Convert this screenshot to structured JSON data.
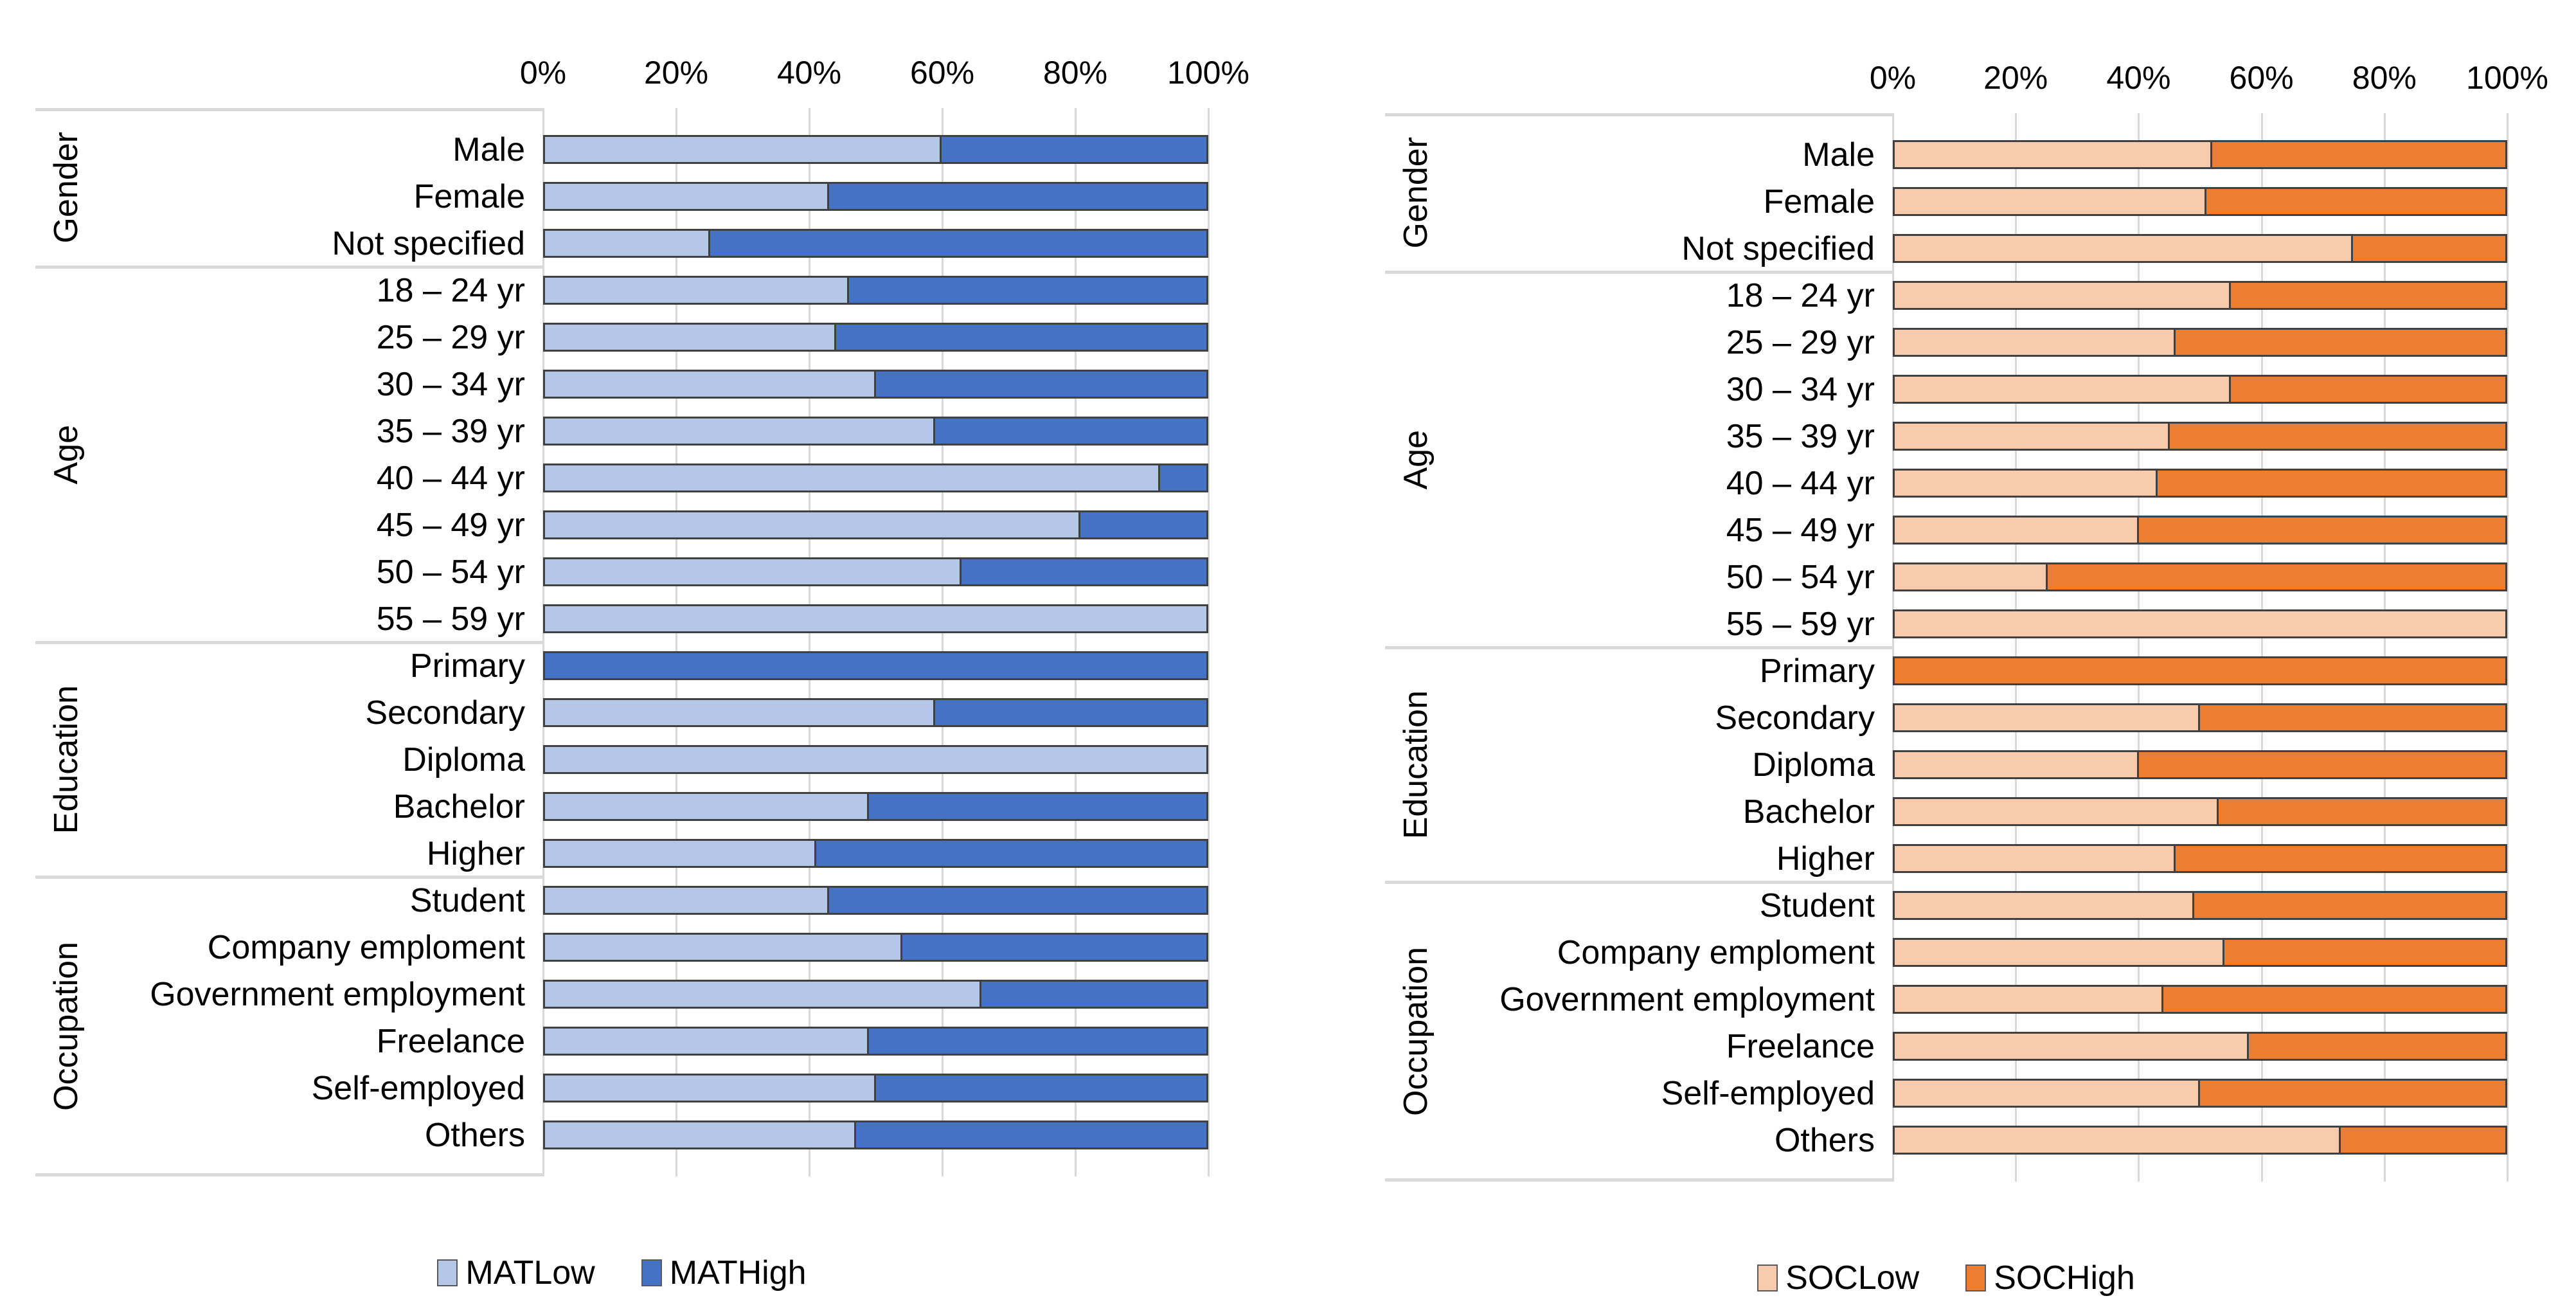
{
  "chart_data": [
    {
      "type": "bar",
      "stacked": true,
      "orientation": "horizontal",
      "units": "percent",
      "xlim": [
        0,
        100
      ],
      "grid": true,
      "legend_position": "bottom",
      "axis_ticks": [
        "0%",
        "20%",
        "40%",
        "60%",
        "80%",
        "100%"
      ],
      "series": [
        {
          "name": "MATLow",
          "color": "#b4c7e7"
        },
        {
          "name": "MATHigh",
          "color": "#4472c4"
        }
      ],
      "groups": [
        {
          "label": "Gender",
          "rows": [
            {
              "label": "Male",
              "low": 60,
              "high": 40
            },
            {
              "label": "Female",
              "low": 43,
              "high": 57
            },
            {
              "label": "Not specified",
              "low": 25,
              "high": 75
            }
          ]
        },
        {
          "label": "Age",
          "rows": [
            {
              "label": "18 – 24 yr",
              "low": 46,
              "high": 54
            },
            {
              "label": "25 – 29 yr",
              "low": 44,
              "high": 56
            },
            {
              "label": "30 – 34 yr",
              "low": 50,
              "high": 50
            },
            {
              "label": "35 – 39 yr",
              "low": 59,
              "high": 41
            },
            {
              "label": "40 – 44 yr",
              "low": 93,
              "high": 7
            },
            {
              "label": "45 – 49 yr",
              "low": 81,
              "high": 19
            },
            {
              "label": "50 – 54 yr",
              "low": 63,
              "high": 37
            },
            {
              "label": "55 – 59 yr",
              "low": 100,
              "high": 0
            }
          ]
        },
        {
          "label": "Education",
          "rows": [
            {
              "label": "Primary",
              "low": 0,
              "high": 100
            },
            {
              "label": "Secondary",
              "low": 59,
              "high": 41
            },
            {
              "label": "Diploma",
              "low": 100,
              "high": 0
            },
            {
              "label": "Bachelor",
              "low": 49,
              "high": 51
            },
            {
              "label": "Higher",
              "low": 41,
              "high": 59
            }
          ]
        },
        {
          "label": "Occupation",
          "rows": [
            {
              "label": "Student",
              "low": 43,
              "high": 57
            },
            {
              "label": "Company emploment",
              "low": 54,
              "high": 46
            },
            {
              "label": "Government employment",
              "low": 66,
              "high": 34
            },
            {
              "label": "Freelance",
              "low": 49,
              "high": 51
            },
            {
              "label": "Self-employed",
              "low": 50,
              "high": 50
            },
            {
              "label": "Others",
              "low": 47,
              "high": 53
            }
          ]
        }
      ]
    },
    {
      "type": "bar",
      "stacked": true,
      "orientation": "horizontal",
      "units": "percent",
      "xlim": [
        0,
        100
      ],
      "grid": true,
      "legend_position": "bottom",
      "axis_ticks": [
        "0%",
        "20%",
        "40%",
        "60%",
        "80%",
        "100%"
      ],
      "series": [
        {
          "name": "SOCLow",
          "color": "#f8cbad"
        },
        {
          "name": "SOCHigh",
          "color": "#ed7d31"
        }
      ],
      "groups": [
        {
          "label": "Gender",
          "rows": [
            {
              "label": "Male",
              "low": 52,
              "high": 48
            },
            {
              "label": "Female",
              "low": 51,
              "high": 49
            },
            {
              "label": "Not specified",
              "low": 75,
              "high": 25
            }
          ]
        },
        {
          "label": "Age",
          "rows": [
            {
              "label": "18 – 24 yr",
              "low": 55,
              "high": 45
            },
            {
              "label": "25 – 29 yr",
              "low": 46,
              "high": 54
            },
            {
              "label": "30 – 34 yr",
              "low": 55,
              "high": 45
            },
            {
              "label": "35 – 39 yr",
              "low": 45,
              "high": 55
            },
            {
              "label": "40 – 44 yr",
              "low": 43,
              "high": 57
            },
            {
              "label": "45 – 49 yr",
              "low": 40,
              "high": 60
            },
            {
              "label": "50 – 54 yr",
              "low": 25,
              "high": 75
            },
            {
              "label": "55 – 59 yr",
              "low": 100,
              "high": 0
            }
          ]
        },
        {
          "label": "Education",
          "rows": [
            {
              "label": "Primary",
              "low": 0,
              "high": 100
            },
            {
              "label": "Secondary",
              "low": 50,
              "high": 50
            },
            {
              "label": "Diploma",
              "low": 40,
              "high": 60
            },
            {
              "label": "Bachelor",
              "low": 53,
              "high": 47
            },
            {
              "label": "Higher",
              "low": 46,
              "high": 54
            }
          ]
        },
        {
          "label": "Occupation",
          "rows": [
            {
              "label": "Student",
              "low": 49,
              "high": 51
            },
            {
              "label": "Company emploment",
              "low": 54,
              "high": 46
            },
            {
              "label": "Government employment",
              "low": 44,
              "high": 56
            },
            {
              "label": "Freelance",
              "low": 58,
              "high": 42
            },
            {
              "label": "Self-employed",
              "low": 50,
              "high": 50
            },
            {
              "label": "Others",
              "low": 73,
              "high": 27
            }
          ]
        }
      ]
    }
  ],
  "style": {
    "bar_border_color": "#404040",
    "gridline_color": "#d9d9d9",
    "separator_color": "#d9d9d9",
    "text_color": "#000000"
  }
}
